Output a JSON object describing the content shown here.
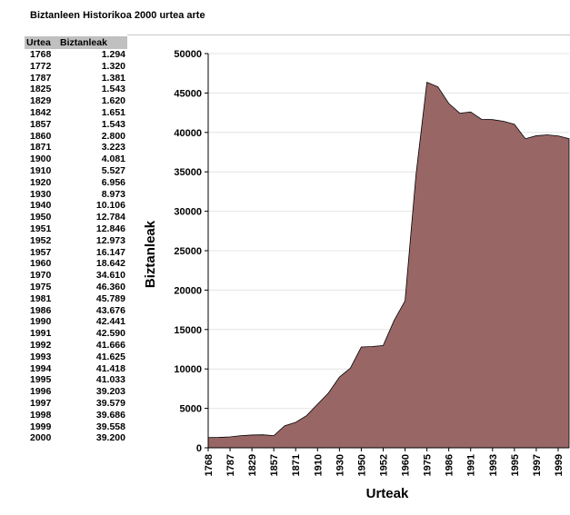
{
  "page_title": "Biztanleen Historikoa 2000 urtea arte",
  "table": {
    "headers": [
      "Urtea",
      "Biztanleak"
    ],
    "rows": [
      [
        "1768",
        "1.294"
      ],
      [
        "1772",
        "1.320"
      ],
      [
        "1787",
        "1.381"
      ],
      [
        "1825",
        "1.543"
      ],
      [
        "1829",
        "1.620"
      ],
      [
        "1842",
        "1.651"
      ],
      [
        "1857",
        "1.543"
      ],
      [
        "1860",
        "2.800"
      ],
      [
        "1871",
        "3.223"
      ],
      [
        "1900",
        "4.081"
      ],
      [
        "1910",
        "5.527"
      ],
      [
        "1920",
        "6.956"
      ],
      [
        "1930",
        "8.973"
      ],
      [
        "1940",
        "10.106"
      ],
      [
        "1950",
        "12.784"
      ],
      [
        "1951",
        "12.846"
      ],
      [
        "1952",
        "12.973"
      ],
      [
        "1957",
        "16.147"
      ],
      [
        "1960",
        "18.642"
      ],
      [
        "1970",
        "34.610"
      ],
      [
        "1975",
        "46.360"
      ],
      [
        "1981",
        "45.789"
      ],
      [
        "1986",
        "43.676"
      ],
      [
        "1990",
        "42.441"
      ],
      [
        "1991",
        "42.590"
      ],
      [
        "1992",
        "41.666"
      ],
      [
        "1993",
        "41.625"
      ],
      [
        "1994",
        "41.418"
      ],
      [
        "1995",
        "41.033"
      ],
      [
        "1996",
        "39.203"
      ],
      [
        "1997",
        "39.579"
      ],
      [
        "1998",
        "39.686"
      ],
      [
        "1999",
        "39.558"
      ],
      [
        "2000",
        "39.200"
      ]
    ]
  },
  "chart_data": {
    "type": "area",
    "xlabel": "Urteak",
    "ylabel": "Biztanleak",
    "ylim": [
      0,
      50000
    ],
    "yticks": [
      0,
      5000,
      10000,
      15000,
      20000,
      25000,
      30000,
      35000,
      40000,
      45000,
      50000
    ],
    "x": [
      "1768",
      "1772",
      "1787",
      "1825",
      "1829",
      "1842",
      "1857",
      "1860",
      "1871",
      "1900",
      "1910",
      "1920",
      "1930",
      "1940",
      "1950",
      "1951",
      "1952",
      "1957",
      "1960",
      "1970",
      "1975",
      "1981",
      "1986",
      "1990",
      "1991",
      "1992",
      "1993",
      "1994",
      "1995",
      "1996",
      "1997",
      "1998",
      "1999",
      "2000"
    ],
    "values": [
      1294,
      1320,
      1381,
      1543,
      1620,
      1651,
      1543,
      2800,
      3223,
      4081,
      5527,
      6956,
      8973,
      10106,
      12784,
      12846,
      12973,
      16147,
      18642,
      34610,
      46360,
      45789,
      43676,
      42441,
      42590,
      41666,
      41625,
      41418,
      41033,
      39203,
      39579,
      39686,
      39558,
      39200
    ],
    "xtick_labels": [
      "1768",
      "1787",
      "1829",
      "1857",
      "1871",
      "1910",
      "1930",
      "1950",
      "1952",
      "1960",
      "1975",
      "1986",
      "1991",
      "1993",
      "1995",
      "1997",
      "1999"
    ],
    "fill_color": "#996666",
    "grid": true
  }
}
